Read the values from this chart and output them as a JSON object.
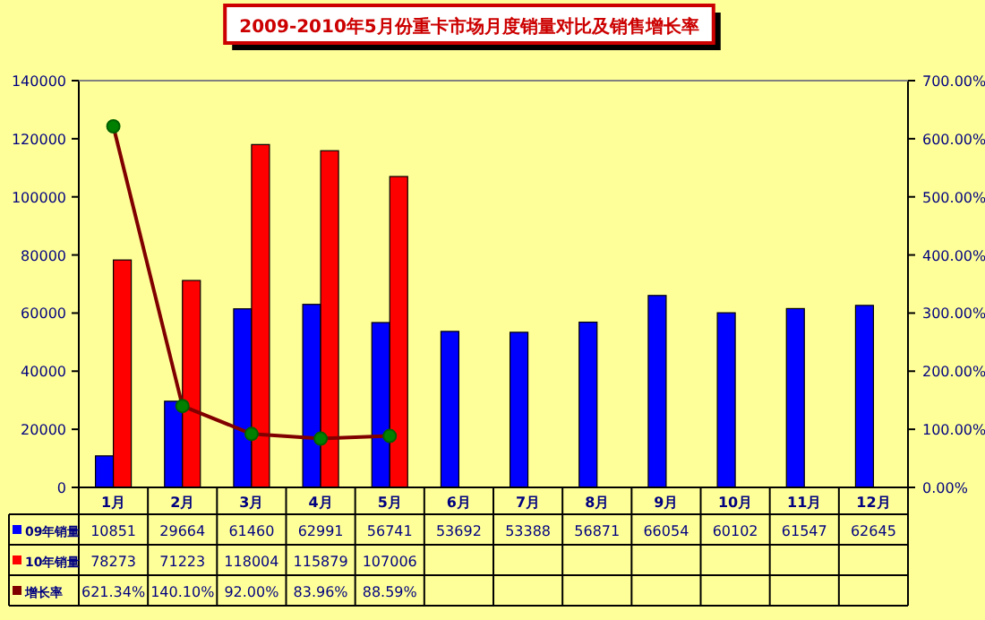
{
  "chart_data": {
    "type": "bar",
    "title": "2009-2010年5月份重卡市场月度销量对比及销售增长率",
    "categories": [
      "1月",
      "2月",
      "3月",
      "4月",
      "5月",
      "6月",
      "7月",
      "8月",
      "9月",
      "10月",
      "11月",
      "12月"
    ],
    "series": [
      {
        "name": "09年销量",
        "color": "#0000ff",
        "values": [
          10851,
          29664,
          61460,
          62991,
          56741,
          53692,
          53388,
          56871,
          66054,
          60102,
          61547,
          62645
        ]
      },
      {
        "name": "10年销量",
        "color": "#ff0000",
        "values": [
          78273,
          71223,
          118004,
          115879,
          107006,
          null,
          null,
          null,
          null,
          null,
          null,
          null
        ]
      },
      {
        "name": "增长率",
        "type": "line",
        "axis": "y2",
        "color": "#800000",
        "marker": "circle",
        "value_labels": [
          "621.34%",
          "140.10%",
          "92.00%",
          "83.96%",
          "88.59%",
          null,
          null,
          null,
          null,
          null,
          null,
          null
        ],
        "values": [
          621.34,
          140.1,
          92.0,
          83.96,
          88.59,
          null,
          null,
          null,
          null,
          null,
          null,
          null
        ]
      }
    ],
    "ylim": [
      0,
      140000
    ],
    "yticks": [
      0,
      20000,
      40000,
      60000,
      80000,
      100000,
      120000,
      140000
    ],
    "y2lim": [
      0,
      700
    ],
    "y2ticks": [
      {
        "value": 0,
        "label": "0.00%"
      },
      {
        "value": 100,
        "label": "100.00%"
      },
      {
        "value": 200,
        "label": "200.00%"
      },
      {
        "value": 300,
        "label": "300.00%"
      },
      {
        "value": 400,
        "label": "400.00%"
      },
      {
        "value": 500,
        "label": "500.00%"
      },
      {
        "value": 600,
        "label": "600.00%"
      },
      {
        "value": 700,
        "label": "700.00%"
      }
    ],
    "data_labels": true,
    "grid": false,
    "legend": "bottom left"
  }
}
